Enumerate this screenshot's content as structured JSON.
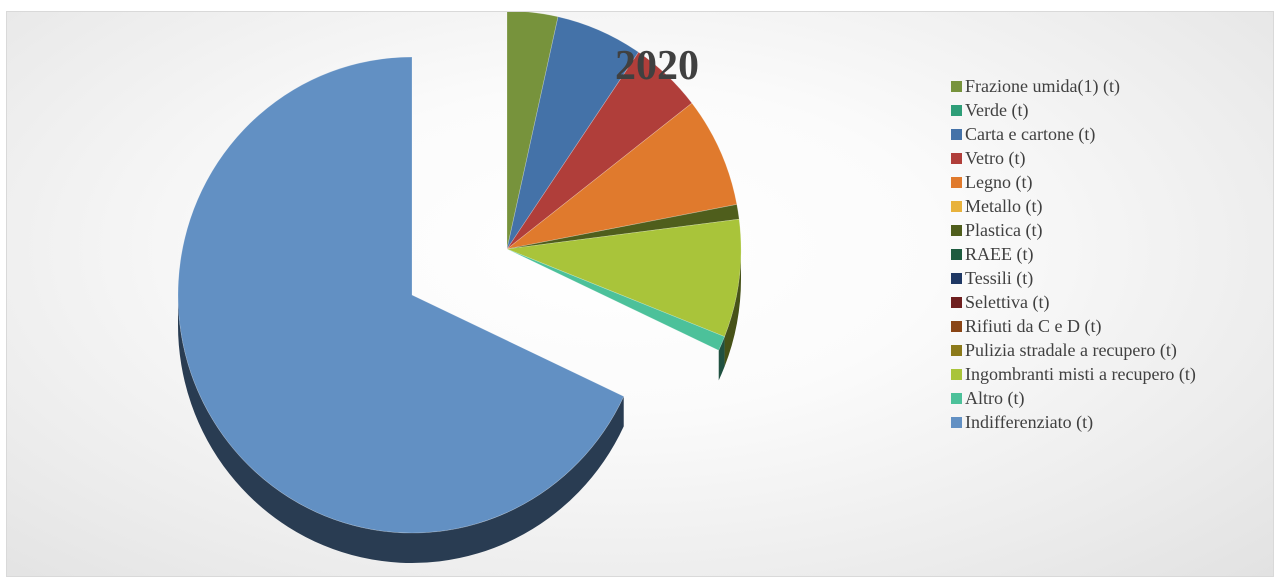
{
  "chart_data": {
    "type": "pie",
    "title": "2020",
    "legend_position": "right",
    "categories": [
      "Frazione umida(1) (t)",
      "Verde (t)",
      "Carta e cartone (t)",
      "Vetro (t)",
      "Legno (t)",
      "Metallo (t)",
      "Plastica (t)",
      "RAEE (t)",
      "Tessili (t)",
      "Selettiva (t)",
      "Rifiuti da C e D (t)",
      "Pulizia stradale a recupero (t)",
      "Ingombranti misti a recupero (t)",
      "Altro (t)",
      "Indifferenziato (t)"
    ],
    "values": [
      3.5,
      0.0,
      6.0,
      5.0,
      7.5,
      0.0,
      1.0,
      0.0,
      0.0,
      0.0,
      0.0,
      0.0,
      8.0,
      1.0,
      68.0
    ],
    "colors": [
      "#77933C",
      "#2E9E78",
      "#4472A8",
      "#B03E3A",
      "#E07A2D",
      "#E8B23C",
      "#4F5E1C",
      "#1E5C3F",
      "#1F3864",
      "#6E1F1F",
      "#8A4515",
      "#8C7A1A",
      "#A9C43A",
      "#4CC19A",
      "#6290C3"
    ],
    "units": "percent (estimated from slice angles)"
  }
}
